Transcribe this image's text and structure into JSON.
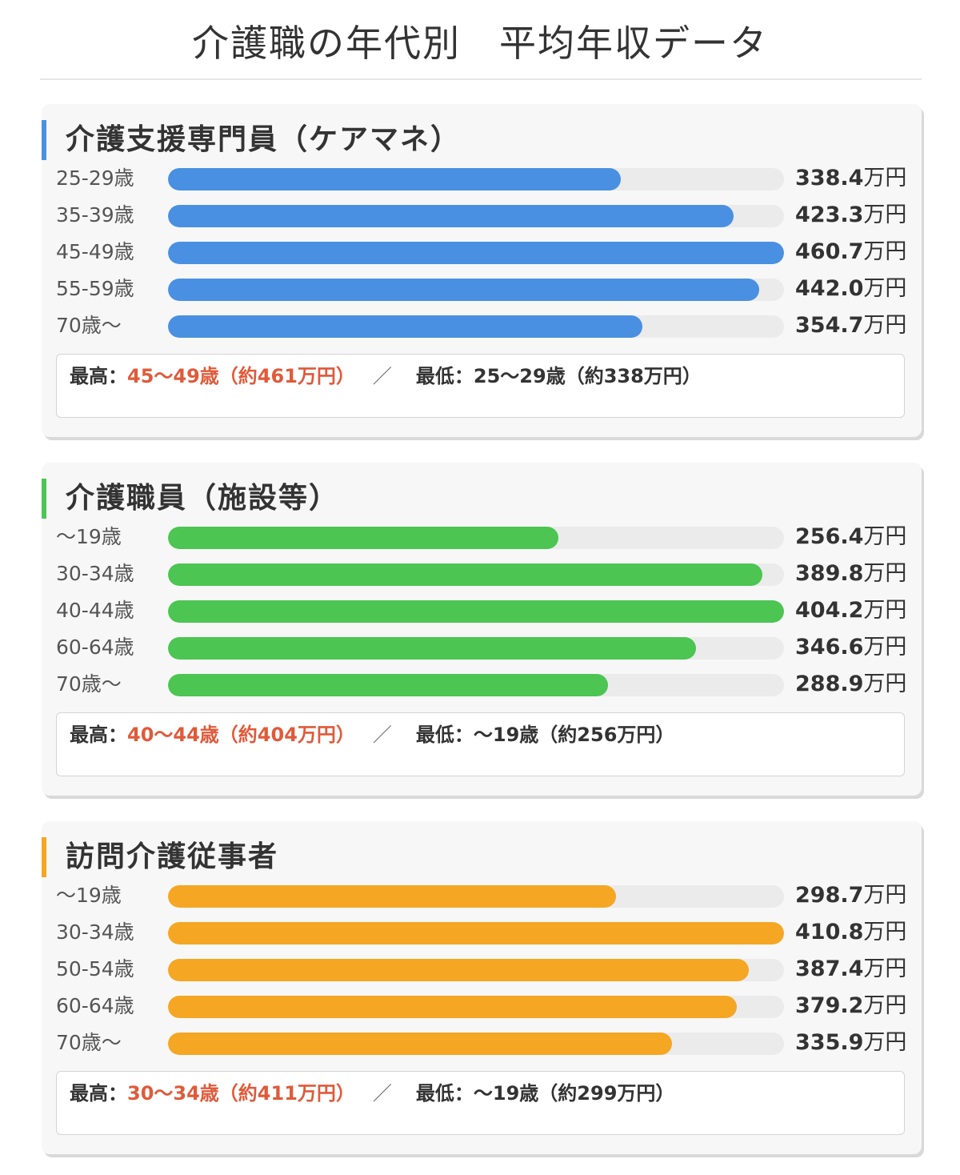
{
  "title": "介護職の年代別　平均年収データ",
  "unit": "万円",
  "summary_labels": {
    "high": "最高：",
    "low": "最低：",
    "separator": "／"
  },
  "chart_data": [
    {
      "type": "bar",
      "orientation": "horizontal",
      "title": "介護支援専門員（ケアマネ）",
      "color": "#4a90e2",
      "categories": [
        "25-29歳",
        "35-39歳",
        "45-49歳",
        "55-59歳",
        "70歳～"
      ],
      "values": [
        338.4,
        423.3,
        460.7,
        442.0,
        354.7
      ],
      "value_labels": [
        "338.4",
        "423.3",
        "460.7",
        "442.0",
        "354.7"
      ],
      "xlim": [
        0,
        460.7
      ],
      "grid": false,
      "summary": {
        "high": "45～49歳（約461万円）",
        "low": "25～29歳（約338万円）"
      }
    },
    {
      "type": "bar",
      "orientation": "horizontal",
      "title": "介護職員（施設等）",
      "color": "#4cc552",
      "categories": [
        "～19歳",
        "30-34歳",
        "40-44歳",
        "60-64歳",
        "70歳～"
      ],
      "values": [
        256.4,
        389.8,
        404.2,
        346.6,
        288.9
      ],
      "value_labels": [
        "256.4",
        "389.8",
        "404.2",
        "346.6",
        "288.9"
      ],
      "xlim": [
        0,
        404.2
      ],
      "grid": false,
      "summary": {
        "high": "40～44歳（約404万円）",
        "low": "～19歳（約256万円）"
      }
    },
    {
      "type": "bar",
      "orientation": "horizontal",
      "title": "訪問介護従事者",
      "color": "#f5a623",
      "categories": [
        "～19歳",
        "30-34歳",
        "50-54歳",
        "60-64歳",
        "70歳～"
      ],
      "values": [
        298.7,
        410.8,
        387.4,
        379.2,
        335.9
      ],
      "value_labels": [
        "298.7",
        "410.8",
        "387.4",
        "379.2",
        "335.9"
      ],
      "xlim": [
        0,
        410.8
      ],
      "grid": false,
      "summary": {
        "high": "30～34歳（約411万円）",
        "low": "～19歳（約299万円）"
      }
    }
  ]
}
